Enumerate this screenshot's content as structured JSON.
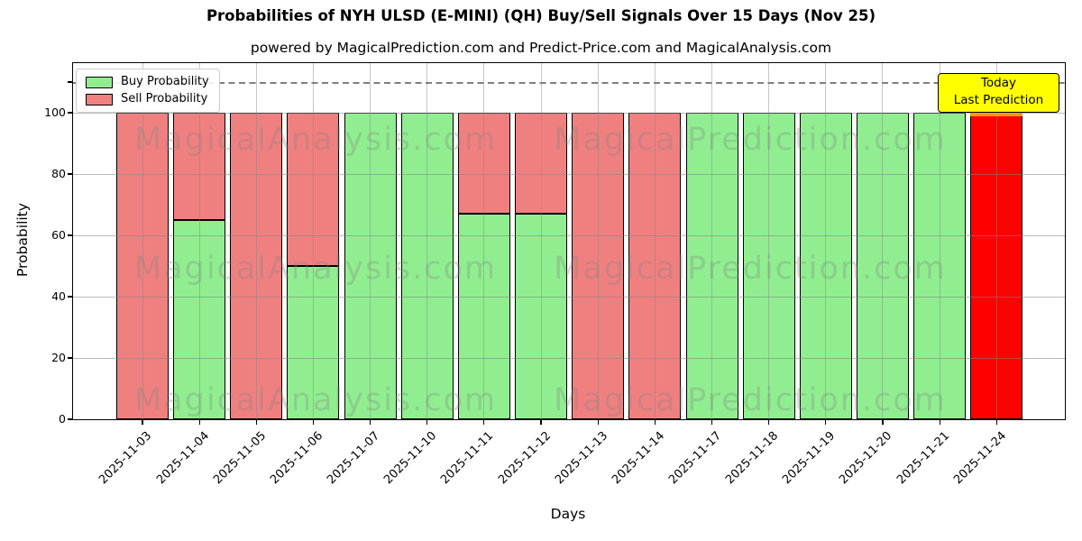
{
  "chart_data": {
    "type": "bar",
    "stacked": true,
    "title": "Probabilities of NYH ULSD (E-MINI) (QH) Buy/Sell Signals Over 15 Days (Nov 25)",
    "subtitle": "powered by MagicalPrediction.com and Predict-Price.com and MagicalAnalysis.com",
    "xlabel": "Days",
    "ylabel": "Probability",
    "ylim": [
      0,
      116
    ],
    "yticks": [
      0,
      20,
      40,
      60,
      80,
      100
    ],
    "grid": true,
    "legend_position": "upper-left",
    "dashed_line_y": 110,
    "categories": [
      "2025-11-03",
      "2025-11-04",
      "2025-11-05",
      "2025-11-06",
      "2025-11-07",
      "2025-11-10",
      "2025-11-11",
      "2025-11-12",
      "2025-11-13",
      "2025-11-14",
      "2025-11-17",
      "2025-11-18",
      "2025-11-19",
      "2025-11-20",
      "2025-11-21",
      "2025-11-24"
    ],
    "series": [
      {
        "name": "Buy Probability",
        "color": "#90ee90",
        "values": [
          0,
          65,
          0,
          50,
          100,
          100,
          67,
          67,
          0,
          0,
          100,
          100,
          100,
          100,
          100,
          0
        ]
      },
      {
        "name": "Sell Probability",
        "color": "#f08080",
        "values": [
          100,
          35,
          100,
          50,
          0,
          0,
          33,
          33,
          100,
          100,
          0,
          0,
          0,
          0,
          0,
          0
        ]
      }
    ],
    "today_index": 15,
    "today_value": 100,
    "today_color": "#ff0000",
    "today_edge_color": "#e8a000"
  },
  "legend": {
    "items": [
      {
        "label": "Buy Probability",
        "color": "#90ee90"
      },
      {
        "label": "Sell Probability",
        "color": "#f08080"
      }
    ]
  },
  "annotation": {
    "line1": "Today",
    "line2": "Last Prediction",
    "bg": "#ffff00",
    "border": "#000000"
  },
  "watermarks": {
    "texts": [
      "MagicalAnalysis.com",
      "MagicalPrediction.com"
    ],
    "color": "#808080"
  }
}
